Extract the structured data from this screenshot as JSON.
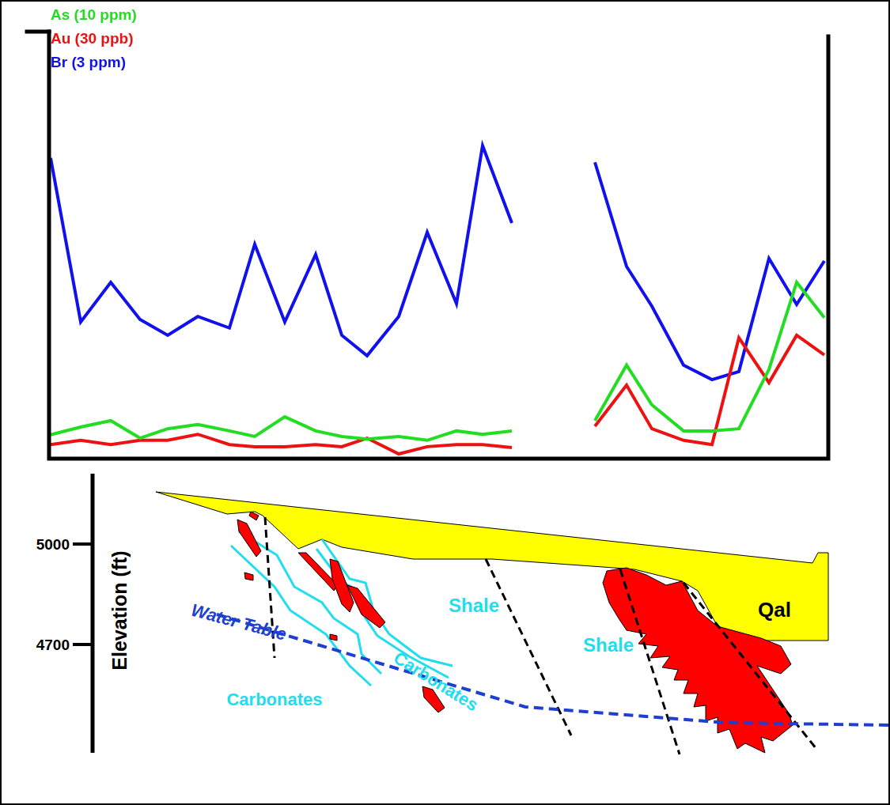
{
  "chart_data": {
    "type": "line",
    "x": [
      2,
      40,
      78,
      115,
      150,
      188,
      228,
      260,
      298,
      337,
      370,
      402,
      442,
      478,
      515,
      548,
      585,
      637,
      690,
      730,
      762,
      802,
      838,
      872,
      910,
      945,
      980
    ],
    "series": [
      {
        "name": "As (10 ppm)",
        "color": "#22dd22",
        "values": [
          5.6,
          7.4,
          8.9,
          4.8,
          7.0,
          8.0,
          6.5,
          5.2,
          9.8,
          6.5,
          5.2,
          4.6,
          5.2,
          4.3,
          6.5,
          5.7,
          6.5,
          null,
          8.9,
          21.9,
          12.6,
          6.5,
          6.5,
          7.0,
          20.9,
          41.3,
          33.0
        ]
      },
      {
        "name": "Au (30 ppb)",
        "color": "#ee1111",
        "values": [
          3.3,
          4.3,
          3.3,
          4.3,
          4.3,
          5.7,
          3.3,
          2.8,
          2.8,
          3.3,
          2.8,
          4.8,
          1.1,
          2.8,
          3.3,
          3.3,
          2.6,
          null,
          7.6,
          17.2,
          7.0,
          4.3,
          3.3,
          28.3,
          17.8,
          28.9,
          24.3
        ]
      },
      {
        "name": "Br (3 ppm)",
        "color": "#1111ee",
        "values": [
          70.4,
          32.0,
          41.3,
          32.6,
          28.9,
          33.3,
          30.6,
          50.2,
          32.0,
          47.8,
          28.9,
          24.1,
          33.3,
          53.0,
          36.3,
          73.3,
          55.2,
          null,
          69.4,
          45.0,
          35.7,
          21.9,
          18.5,
          20.4,
          46.9,
          36.1,
          46.3
        ]
      }
    ],
    "xlim": [
      0,
      985
    ],
    "ylim": [
      0,
      100
    ],
    "yticks": [
      100
    ],
    "tick_labels": false,
    "grid": false,
    "legend": "upper left"
  },
  "cross_section": {
    "axis_title": "Elevation (ft)",
    "elevation_ticks": [
      5000,
      4700
    ],
    "labels": [
      "Water Table",
      "Carbonates",
      "Carbonates",
      "Shale",
      "Shale",
      "Qal"
    ]
  }
}
